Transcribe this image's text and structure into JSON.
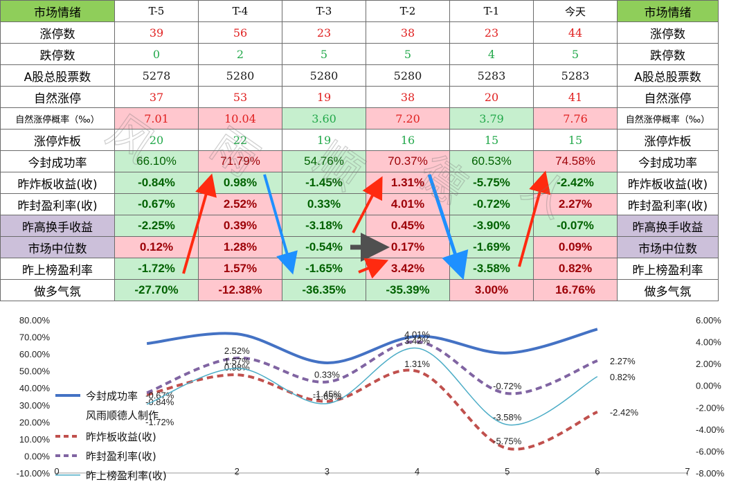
{
  "table": {
    "header": {
      "left": "市场情绪",
      "cols": [
        "T-5",
        "T-4",
        "T-3",
        "T-2",
        "T-1",
        "今天"
      ],
      "right": "市场情绪"
    },
    "rows": [
      {
        "label": "涨停数",
        "kind": "plain",
        "cells": [
          {
            "v": "39",
            "c": "red"
          },
          {
            "v": "56",
            "c": "red"
          },
          {
            "v": "23",
            "c": "red"
          },
          {
            "v": "38",
            "c": "red"
          },
          {
            "v": "23",
            "c": "red"
          },
          {
            "v": "44",
            "c": "red"
          }
        ]
      },
      {
        "label": "跌停数",
        "kind": "plain",
        "cells": [
          {
            "v": "0",
            "c": "green"
          },
          {
            "v": "2",
            "c": "green"
          },
          {
            "v": "5",
            "c": "green"
          },
          {
            "v": "5",
            "c": "green"
          },
          {
            "v": "4",
            "c": "green"
          },
          {
            "v": "5",
            "c": "green"
          }
        ]
      },
      {
        "label": "A股总股票数",
        "kind": "plain",
        "cells": [
          {
            "v": "5278",
            "c": "black"
          },
          {
            "v": "5280",
            "c": "black"
          },
          {
            "v": "5280",
            "c": "black"
          },
          {
            "v": "5280",
            "c": "black"
          },
          {
            "v": "5283",
            "c": "black"
          },
          {
            "v": "5283",
            "c": "black"
          }
        ]
      },
      {
        "label": "自然涨停",
        "kind": "plain",
        "cells": [
          {
            "v": "37",
            "c": "red"
          },
          {
            "v": "53",
            "c": "red"
          },
          {
            "v": "19",
            "c": "red"
          },
          {
            "v": "38",
            "c": "red"
          },
          {
            "v": "20",
            "c": "red"
          },
          {
            "v": "41",
            "c": "red"
          }
        ]
      },
      {
        "label": "自然涨停概率（‰）",
        "kind": "plain",
        "small": true,
        "cells": [
          {
            "v": "7.01",
            "c": "red",
            "bg": "r"
          },
          {
            "v": "10.04",
            "c": "red",
            "bg": "r"
          },
          {
            "v": "3.60",
            "c": "green",
            "bg": "g"
          },
          {
            "v": "7.20",
            "c": "red",
            "bg": "r"
          },
          {
            "v": "3.79",
            "c": "green",
            "bg": "g"
          },
          {
            "v": "7.76",
            "c": "red",
            "bg": "r"
          }
        ]
      },
      {
        "label": "涨停炸板",
        "kind": "plain",
        "cells": [
          {
            "v": "20",
            "c": "green"
          },
          {
            "v": "22",
            "c": "green"
          },
          {
            "v": "19",
            "c": "green"
          },
          {
            "v": "16",
            "c": "green"
          },
          {
            "v": "15",
            "c": "green"
          },
          {
            "v": "15",
            "c": "green"
          }
        ]
      },
      {
        "label": "今封成功率",
        "kind": "pctn",
        "cells": [
          {
            "v": "66.10%",
            "c": "dkgreen",
            "bg": "g"
          },
          {
            "v": "71.79%",
            "c": "dkred",
            "bg": "r"
          },
          {
            "v": "54.76%",
            "c": "dkgreen",
            "bg": "g"
          },
          {
            "v": "70.37%",
            "c": "dkred",
            "bg": "r"
          },
          {
            "v": "60.53%",
            "c": "dkgreen",
            "bg": "g"
          },
          {
            "v": "74.58%",
            "c": "dkred",
            "bg": "r"
          }
        ]
      },
      {
        "label": "昨炸板收益(收)",
        "kind": "pct",
        "cells": [
          {
            "v": "-0.84%",
            "c": "dkgreen",
            "bg": "g"
          },
          {
            "v": "0.98%",
            "c": "dkgreen",
            "bg": "g"
          },
          {
            "v": "-1.45%",
            "c": "dkgreen",
            "bg": "g"
          },
          {
            "v": "1.31%",
            "c": "dkred",
            "bg": "r"
          },
          {
            "v": "-5.75%",
            "c": "dkgreen",
            "bg": "g"
          },
          {
            "v": "-2.42%",
            "c": "dkgreen",
            "bg": "g"
          }
        ]
      },
      {
        "label": "昨封盈利率(收)",
        "kind": "pct",
        "cells": [
          {
            "v": "-0.67%",
            "c": "dkgreen",
            "bg": "g"
          },
          {
            "v": "2.52%",
            "c": "dkred",
            "bg": "r"
          },
          {
            "v": "0.33%",
            "c": "dkgreen",
            "bg": "g"
          },
          {
            "v": "4.01%",
            "c": "dkred",
            "bg": "r"
          },
          {
            "v": "-0.72%",
            "c": "dkgreen",
            "bg": "g"
          },
          {
            "v": "2.27%",
            "c": "dkred",
            "bg": "r"
          }
        ]
      },
      {
        "label": "昨高换手收益",
        "kind": "pct",
        "purple": true,
        "cells": [
          {
            "v": "-2.25%",
            "c": "dkgreen",
            "bg": "g"
          },
          {
            "v": "0.39%",
            "c": "dkred",
            "bg": "r"
          },
          {
            "v": "-3.18%",
            "c": "dkgreen",
            "bg": "g"
          },
          {
            "v": "0.45%",
            "c": "dkred",
            "bg": "r"
          },
          {
            "v": "-3.90%",
            "c": "dkgreen",
            "bg": "g"
          },
          {
            "v": "-0.07%",
            "c": "dkgreen",
            "bg": "g"
          }
        ]
      },
      {
        "label": "市场中位数",
        "kind": "pct",
        "purple": true,
        "cells": [
          {
            "v": "0.12%",
            "c": "dkred",
            "bg": "r"
          },
          {
            "v": "1.28%",
            "c": "dkred",
            "bg": "r"
          },
          {
            "v": "-0.54%",
            "c": "dkgreen",
            "bg": "g"
          },
          {
            "v": "0.17%",
            "c": "dkred",
            "bg": "r"
          },
          {
            "v": "-1.69%",
            "c": "dkgreen",
            "bg": "g"
          },
          {
            "v": "0.09%",
            "c": "dkred",
            "bg": "r"
          }
        ]
      },
      {
        "label": "昨上榜盈利率",
        "kind": "pct",
        "cells": [
          {
            "v": "-1.72%",
            "c": "dkgreen",
            "bg": "g"
          },
          {
            "v": "1.57%",
            "c": "dkred",
            "bg": "r"
          },
          {
            "v": "-1.65%",
            "c": "dkgreen",
            "bg": "g"
          },
          {
            "v": "3.42%",
            "c": "dkred",
            "bg": "r"
          },
          {
            "v": "-3.58%",
            "c": "dkgreen",
            "bg": "g"
          },
          {
            "v": "0.82%",
            "c": "dkred",
            "bg": "r"
          }
        ]
      },
      {
        "label": "做多气氛",
        "kind": "pct",
        "cells": [
          {
            "v": "-27.70%",
            "c": "dkgreen",
            "bg": "g"
          },
          {
            "v": "-12.38%",
            "c": "dkred",
            "bg": "r"
          },
          {
            "v": "-36.35%",
            "c": "dkgreen",
            "bg": "g"
          },
          {
            "v": "-35.39%",
            "c": "dkgreen",
            "bg": "g"
          },
          {
            "v": "3.00%",
            "c": "dkred",
            "bg": "r"
          },
          {
            "v": "16.76%",
            "c": "dkred",
            "bg": "r"
          }
        ]
      }
    ]
  },
  "colors": {
    "header_green": "#8fce5a",
    "cell_green": "#c6efce",
    "cell_red": "#ffc7ce",
    "purple": "#ccc0da",
    "series_success": "#4472c4",
    "series_broken": "#c0504d",
    "series_sealed": "#8064a2",
    "series_list": "#4bacc6",
    "arrow_red": "#ff2a10",
    "arrow_blue": "#1e90ff",
    "arrow_gray": "#505050"
  },
  "watermark": "风雨顺德人",
  "chart_data": {
    "type": "line",
    "x": [
      1,
      2,
      3,
      4,
      5,
      6
    ],
    "xticks": [
      "0",
      "2",
      "3",
      "4",
      "5",
      "6",
      "7"
    ],
    "y_left": {
      "ticks": [
        "80.00%",
        "70.00%",
        "60.00%",
        "50.00%",
        "40.00%",
        "30.00%",
        "20.00%",
        "10.00%",
        "0.00%",
        "-10.00%"
      ],
      "range": [
        -10,
        80
      ]
    },
    "y_right": {
      "ticks": [
        "6.00%",
        "4.00%",
        "2.00%",
        "0.00%",
        "-2.00%",
        "-4.00%",
        "-6.00%",
        "-8.00%"
      ],
      "range": [
        -8,
        6
      ]
    },
    "x_range": [
      0,
      7
    ],
    "series": [
      {
        "name": "今封成功率",
        "axis": "left",
        "values": [
          66.1,
          71.79,
          54.76,
          70.37,
          60.53,
          74.58
        ],
        "labels": [],
        "style": "solid"
      },
      {
        "name": "昨炸板收益(收)",
        "axis": "right",
        "values": [
          -0.84,
          0.98,
          -1.45,
          1.31,
          -5.75,
          -2.42
        ],
        "labels": [
          "-0.84%",
          "0.98%",
          "-1.45%",
          "1.31%",
          "-5.75%",
          "-2.42%"
        ],
        "style": "dash"
      },
      {
        "name": "昨封盈利率(收)",
        "axis": "right",
        "values": [
          -0.67,
          2.52,
          0.33,
          4.01,
          -0.72,
          2.27
        ],
        "labels": [
          "-0.67%",
          "2.52%",
          "0.33%",
          "4.01%",
          "-0.72%",
          "2.27%"
        ],
        "style": "dash"
      },
      {
        "name": "昨上榜盈利率(收)",
        "axis": "right",
        "values": [
          -1.72,
          1.57,
          -1.65,
          3.42,
          -3.58,
          0.82
        ],
        "labels": [
          "-1.72%",
          "1.57%",
          "-1.65%",
          "3.42%",
          "-3.58%",
          "0.82%"
        ],
        "style": "thin"
      }
    ],
    "legend": {
      "placement": "left",
      "maker_text": "风雨顺德人制作"
    }
  }
}
